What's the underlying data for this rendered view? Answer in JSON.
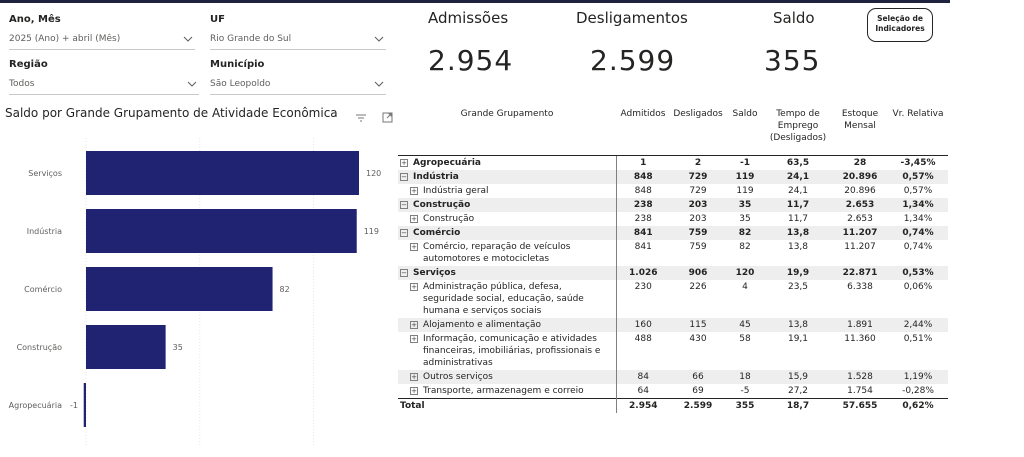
{
  "filters": {
    "ano_mes": {
      "label": "Ano, Mês",
      "value": "2025 (Ano) + abril (Mês)"
    },
    "uf": {
      "label": "UF",
      "value": "Rio Grande do Sul"
    },
    "regiao": {
      "label": "Região",
      "value": "Todos"
    },
    "municipio": {
      "label": "Município",
      "value": "São Leopoldo"
    }
  },
  "kpis": {
    "admissoes": {
      "label": "Admissões",
      "value": "2.954"
    },
    "desligamentos": {
      "label": "Desligamentos",
      "value": "2.599"
    },
    "saldo": {
      "label": "Saldo",
      "value": "355"
    }
  },
  "selector_button": {
    "line1": "Seleção de",
    "line2": "Indicadores"
  },
  "chart_title": "Saldo por Grande Grupamento de Atividade Econômica",
  "chart_data": {
    "type": "bar",
    "orientation": "horizontal",
    "categories": [
      "Serviços",
      "Indústria",
      "Comércio",
      "Construção",
      "Agropecuária"
    ],
    "values": [
      120,
      119,
      82,
      35,
      -1
    ],
    "x_ticks": [
      "0",
      "50",
      "100"
    ],
    "xlim": [
      0,
      130
    ],
    "bar_color": "#1f2372"
  },
  "table": {
    "headers": [
      "Grande Grupamento",
      "Admitidos",
      "Desligados",
      "Saldo",
      "Tempo de Emprego (Desligados)",
      "Estoque Mensal",
      "Vr. Relativa"
    ],
    "rows": [
      {
        "level": 1,
        "exp": "+",
        "name": "Agropecuária",
        "v": [
          "1",
          "2",
          "-1",
          "63,5",
          "28",
          "-3,45%"
        ],
        "shade": false
      },
      {
        "level": 1,
        "exp": "−",
        "name": "Indústria",
        "v": [
          "848",
          "729",
          "119",
          "24,1",
          "20.896",
          "0,57%"
        ],
        "shade": true
      },
      {
        "level": 2,
        "exp": "+",
        "name": "Indústria geral",
        "v": [
          "848",
          "729",
          "119",
          "24,1",
          "20.896",
          "0,57%"
        ],
        "shade": false
      },
      {
        "level": 1,
        "exp": "−",
        "name": "Construção",
        "v": [
          "238",
          "203",
          "35",
          "11,7",
          "2.653",
          "1,34%"
        ],
        "shade": true
      },
      {
        "level": 2,
        "exp": "+",
        "name": "Construção",
        "v": [
          "238",
          "203",
          "35",
          "11,7",
          "2.653",
          "1,34%"
        ],
        "shade": false
      },
      {
        "level": 1,
        "exp": "−",
        "name": "Comércio",
        "v": [
          "841",
          "759",
          "82",
          "13,8",
          "11.207",
          "0,74%"
        ],
        "shade": true
      },
      {
        "level": 2,
        "exp": "+",
        "name": "Comércio, reparação de veículos automotores e motocicletas",
        "v": [
          "841",
          "759",
          "82",
          "13,8",
          "11.207",
          "0,74%"
        ],
        "shade": false
      },
      {
        "level": 1,
        "exp": "−",
        "name": "Serviços",
        "v": [
          "1.026",
          "906",
          "120",
          "19,9",
          "22.871",
          "0,53%"
        ],
        "shade": true
      },
      {
        "level": 2,
        "exp": "+",
        "name": "Administração pública, defesa, seguridade social, educação, saúde humana e serviços sociais",
        "v": [
          "230",
          "226",
          "4",
          "23,5",
          "6.338",
          "0,06%"
        ],
        "shade": false
      },
      {
        "level": 2,
        "exp": "+",
        "name": "Alojamento e alimentação",
        "v": [
          "160",
          "115",
          "45",
          "13,8",
          "1.891",
          "2,44%"
        ],
        "shade": true
      },
      {
        "level": 2,
        "exp": "+",
        "name": "Informação, comunicação e atividades financeiras, imobiliárias, profissionais e administrativas",
        "v": [
          "488",
          "430",
          "58",
          "19,1",
          "11.360",
          "0,51%"
        ],
        "shade": false
      },
      {
        "level": 2,
        "exp": "+",
        "name": "Outros serviços",
        "v": [
          "84",
          "66",
          "18",
          "15,9",
          "1.528",
          "1,19%"
        ],
        "shade": true
      },
      {
        "level": 2,
        "exp": "+",
        "name": "Transporte, armazenagem e correio",
        "v": [
          "64",
          "69",
          "-5",
          "27,2",
          "1.754",
          "-0,28%"
        ],
        "shade": false
      }
    ],
    "total": {
      "name": "Total",
      "v": [
        "2.954",
        "2.599",
        "355",
        "18,7",
        "57.655",
        "0,62%"
      ]
    }
  }
}
